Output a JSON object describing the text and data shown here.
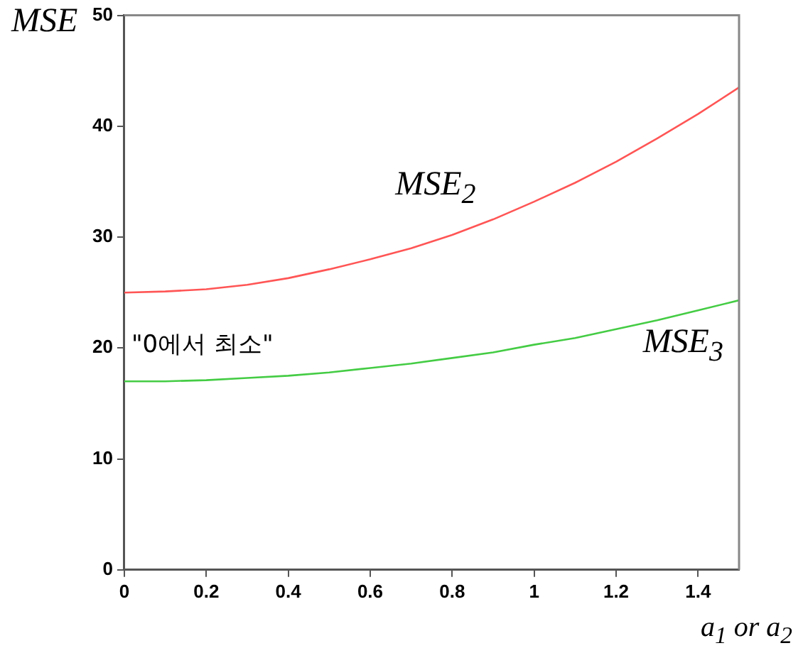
{
  "chart_data": {
    "type": "line",
    "xlabel": "a$_{1}$ or a$_{2}$",
    "ylabel": "MSE",
    "x": [
      0,
      0.1,
      0.2,
      0.3,
      0.4,
      0.5,
      0.6,
      0.7,
      0.8,
      0.9,
      1.0,
      1.1,
      1.2,
      1.3,
      1.4,
      1.5
    ],
    "series": [
      {
        "name": "MSE$_{2}$",
        "color": "#ff5555",
        "values": [
          25,
          25.1,
          25.3,
          25.7,
          26.3,
          27.1,
          28.0,
          29.0,
          30.2,
          31.6,
          33.2,
          34.9,
          36.8,
          38.9,
          41.1,
          43.5
        ]
      },
      {
        "name": "MSE$_{3}$",
        "color": "#44cc44",
        "values": [
          17,
          17.0,
          17.1,
          17.3,
          17.5,
          17.8,
          18.2,
          18.6,
          19.1,
          19.6,
          20.3,
          20.9,
          21.7,
          22.5,
          23.4,
          24.3
        ]
      }
    ],
    "xlim": [
      0,
      1.5
    ],
    "xticks": [
      0,
      0.2,
      0.4,
      0.6,
      0.8,
      1,
      1.2,
      1.4
    ],
    "ylim": [
      0,
      50
    ],
    "yticks": [
      0,
      10,
      20,
      30,
      40,
      50
    ],
    "annotations": [
      "\"0에서 최소\""
    ],
    "grid": false,
    "legend": false,
    "marker": "none",
    "line_style": "solid"
  }
}
